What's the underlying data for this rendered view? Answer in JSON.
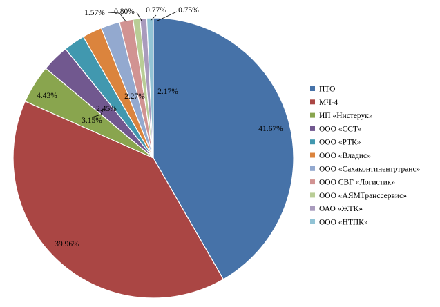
{
  "chart_data": {
    "type": "pie",
    "title": "",
    "legend_position": "right",
    "start_angle_deg": 0,
    "direction": "clockwise",
    "slices": [
      {
        "name": "ПТО",
        "value": 41.67,
        "label": "41.67%",
        "color": "#4672A8"
      },
      {
        "name": "МЧ-4",
        "value": 39.96,
        "label": "39.96%",
        "color": "#AA4644"
      },
      {
        "name": "ИП «Нистерук»",
        "value": 4.43,
        "label": "4.43%",
        "color": "#89A54E"
      },
      {
        "name": "ООО «ССТ»",
        "value": 3.15,
        "label": "3.15%",
        "color": "#71588F"
      },
      {
        "name": "ООО «РТК»",
        "value": 2.45,
        "label": "2.45%",
        "color": "#4198AF"
      },
      {
        "name": "ООО «Владис»",
        "value": 2.27,
        "label": "2.27%",
        "color": "#DB843D"
      },
      {
        "name": "ООО «Сахаконтинентртранс»",
        "value": 2.17,
        "label": "2.17%",
        "color": "#93A9CF"
      },
      {
        "name": "ООО СВГ «Логистик»",
        "value": 1.57,
        "label": "1.57%",
        "color": "#D19392"
      },
      {
        "name": "ООО «АЯМТранссервис»",
        "value": 0.8,
        "label": "0.80%",
        "color": "#B9CD96"
      },
      {
        "name": "ОАО «ЖТК»",
        "value": 0.77,
        "label": "0.77%",
        "color": "#A99BBD"
      },
      {
        "name": "ООО «НТПК»",
        "value": 0.75,
        "label": "0.75%",
        "color": "#91C3D5"
      }
    ]
  }
}
